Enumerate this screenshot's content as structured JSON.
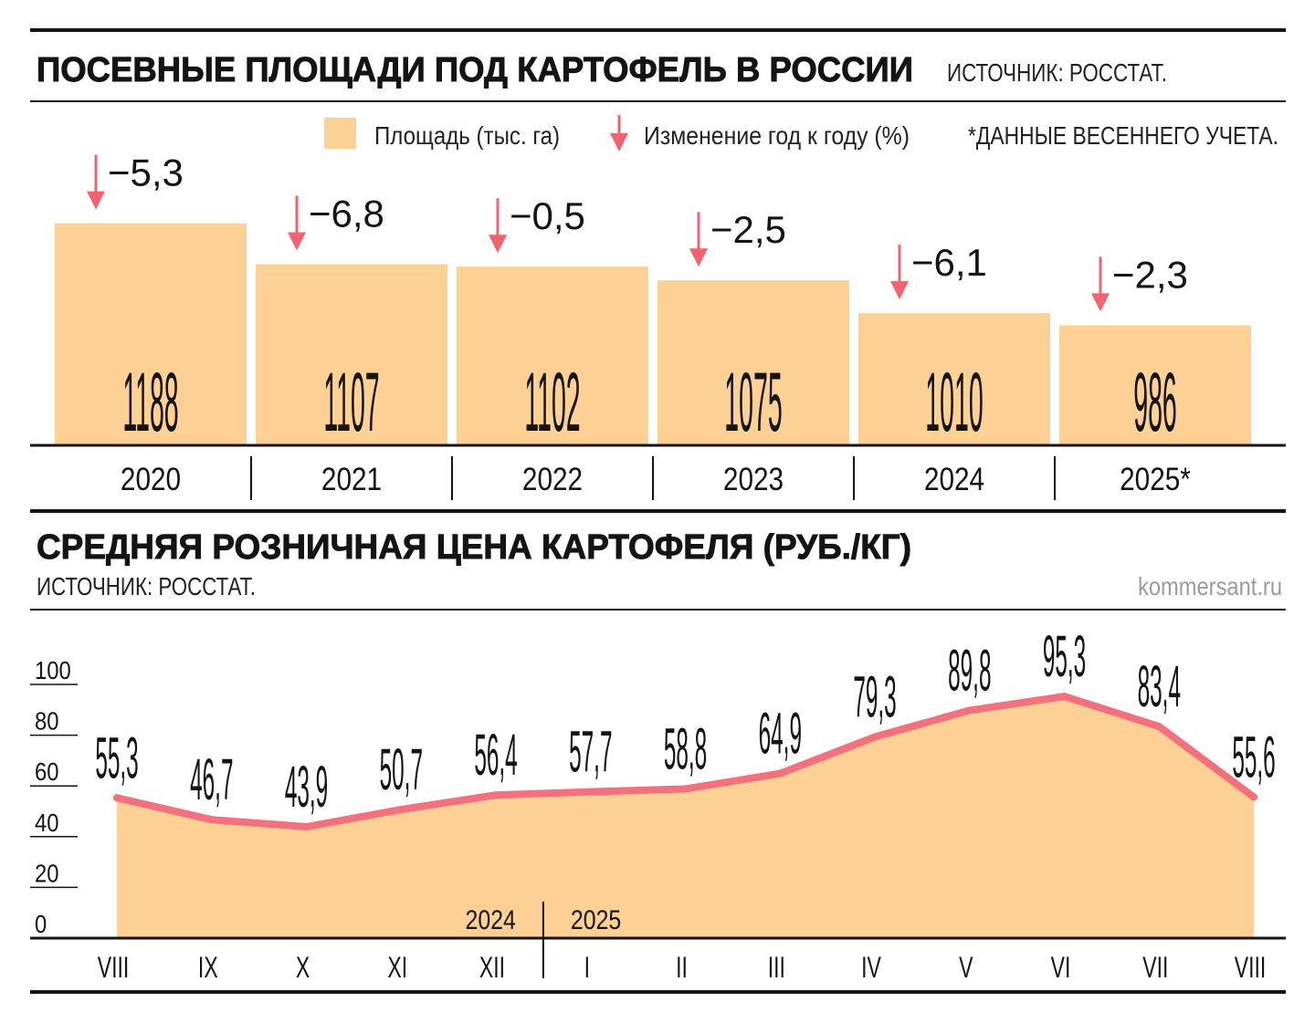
{
  "chart_data": [
    {
      "type": "bar",
      "title": "ПОСЕВНЫЕ ПЛОЩАДИ ПОД КАРТОФЕЛЬ В РОССИИ",
      "source": "ИСТОЧНИК: РОССТАТ.",
      "note": "*ДАННЫЕ ВЕСЕННЕГО УЧЕТА.",
      "categories": [
        "2020",
        "2021",
        "2022",
        "2023",
        "2024",
        "2025*"
      ],
      "series": [
        {
          "name": "Площадь (тыс. га)",
          "values": [
            1188,
            1107,
            1102,
            1075,
            1010,
            986
          ],
          "labels": [
            "1188",
            "1107",
            "1102",
            "1075",
            "1010",
            "986"
          ],
          "color": "#FDD194"
        },
        {
          "name": "Изменение год к году (%)",
          "values": [
            -5.3,
            -6.8,
            -0.5,
            -2.5,
            -6.1,
            -2.3
          ],
          "labels": [
            "−5,3",
            "−6,8",
            "−0,5",
            "−2,5",
            "−6,1",
            "−2,3"
          ],
          "color": "#F2636F",
          "marker": "down-arrow-icon"
        }
      ],
      "ylim": [
        750,
        1200
      ],
      "grid": false,
      "legend": "top"
    },
    {
      "type": "area",
      "title": "СРЕДНЯЯ РОЗНИЧНАЯ ЦЕНА КАРТОФЕЛЯ (РУБ./КГ)",
      "source": "ИСТОЧНИК: РОССТАТ.",
      "periods": [
        {
          "year": "2024",
          "months": [
            "VIII",
            "IX",
            "X",
            "XI",
            "XII"
          ]
        },
        {
          "year": "2025",
          "months": [
            "I",
            "II",
            "III",
            "IV",
            "V",
            "VI",
            "VII",
            "VIII"
          ]
        }
      ],
      "values": [
        55.3,
        46.7,
        43.9,
        50.7,
        56.4,
        57.7,
        58.8,
        64.9,
        79.3,
        89.8,
        95.3,
        83.4,
        55.6
      ],
      "labels": [
        "55,3",
        "46,7",
        "43,9",
        "50,7",
        "56,4",
        "57,7",
        "58,8",
        "64,9",
        "79,3",
        "89,8",
        "95,3",
        "83,4",
        "55,6"
      ],
      "yticks": [
        0,
        20,
        40,
        60,
        80,
        100
      ],
      "ylim": [
        0,
        100
      ],
      "grid": false,
      "line_color": "#F3717C",
      "area_color": "#FDD194"
    }
  ],
  "credit": "kommersant.ru"
}
